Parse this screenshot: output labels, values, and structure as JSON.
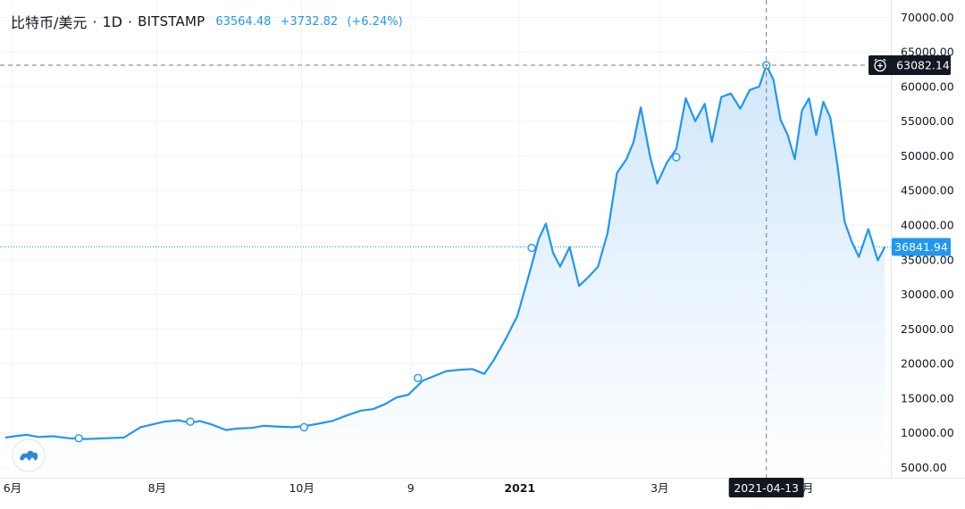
{
  "header": {
    "symbol": "比特币/美元",
    "interval": "1D",
    "exchange": "BITSTAMP",
    "last_price": "63564.48",
    "change": "+3732.82",
    "change_pct": "(+6.24%)"
  },
  "crosshair": {
    "date_label": "2021-04-13",
    "price_label": "63082.14",
    "alarm_icon": "alarm-clock-icon"
  },
  "last_price_label": "36841.94",
  "colors": {
    "line": "#2196f3",
    "area_top": "#cfe6fb",
    "area_bottom": "#ffffff",
    "axis_text": "#131722",
    "grid": "#f0f3fa",
    "crosshair": "#787b86",
    "last_price_bg": "#2196f3",
    "crosshair_label_bg": "#131722"
  },
  "chart_data": {
    "type": "area",
    "title": "",
    "xlabel": "",
    "ylabel": "",
    "ylim": [
      3500,
      72500
    ],
    "grid": true,
    "y_ticks": [
      "5000.00",
      "10000.00",
      "15000.00",
      "20000.00",
      "25000.00",
      "30000.00",
      "35000.00",
      "40000.00",
      "45000.00",
      "50000.00",
      "55000.00",
      "60000.00",
      "65000.00",
      "70000.00"
    ],
    "x_ticks": [
      {
        "label": "6月",
        "day": 3,
        "bold": false
      },
      {
        "label": "8月",
        "day": 64,
        "bold": false
      },
      {
        "label": "10月",
        "day": 125,
        "bold": false
      },
      {
        "label": "9",
        "day": 171,
        "bold": false
      },
      {
        "label": "2021",
        "day": 217,
        "bold": true
      },
      {
        "label": "3月",
        "day": 276,
        "bold": false
      },
      {
        "label": "5月",
        "day": 337,
        "bold": false
      }
    ],
    "series": [
      {
        "values": [
          [
            0,
            9300
          ],
          [
            4,
            9500
          ],
          [
            9,
            9700
          ],
          [
            14,
            9400
          ],
          [
            20,
            9500
          ],
          [
            27,
            9200
          ],
          [
            34,
            9100
          ],
          [
            42,
            9200
          ],
          [
            50,
            9300
          ],
          [
            57,
            10800
          ],
          [
            62,
            11200
          ],
          [
            67,
            11600
          ],
          [
            73,
            11800
          ],
          [
            78,
            11400
          ],
          [
            82,
            11700
          ],
          [
            87,
            11200
          ],
          [
            93,
            10400
          ],
          [
            98,
            10600
          ],
          [
            104,
            10700
          ],
          [
            109,
            11000
          ],
          [
            114,
            10900
          ],
          [
            121,
            10800
          ],
          [
            127,
            11000
          ],
          [
            132,
            11300
          ],
          [
            138,
            11700
          ],
          [
            144,
            12500
          ],
          [
            150,
            13200
          ],
          [
            155,
            13400
          ],
          [
            160,
            14100
          ],
          [
            165,
            15100
          ],
          [
            170,
            15500
          ],
          [
            176,
            17500
          ],
          [
            181,
            18200
          ],
          [
            186,
            18900
          ],
          [
            192,
            19100
          ],
          [
            197,
            19200
          ],
          [
            202,
            18500
          ],
          [
            206,
            20500
          ],
          [
            211,
            23500
          ],
          [
            216,
            26900
          ],
          [
            221,
            33000
          ],
          [
            225,
            38000
          ],
          [
            228,
            40200
          ],
          [
            231,
            36000
          ],
          [
            234,
            34000
          ],
          [
            238,
            36800
          ],
          [
            242,
            31200
          ],
          [
            246,
            32500
          ],
          [
            250,
            34000
          ],
          [
            254,
            38800
          ],
          [
            258,
            47500
          ],
          [
            262,
            49500
          ],
          [
            265,
            52000
          ],
          [
            268,
            57000
          ],
          [
            272,
            49800
          ],
          [
            275,
            46000
          ],
          [
            279,
            49000
          ],
          [
            283,
            51000
          ],
          [
            287,
            58300
          ],
          [
            291,
            55000
          ],
          [
            295,
            57500
          ],
          [
            298,
            52000
          ],
          [
            302,
            58500
          ],
          [
            306,
            59000
          ],
          [
            310,
            56800
          ],
          [
            314,
            59500
          ],
          [
            318,
            60000
          ],
          [
            321,
            63082
          ],
          [
            324,
            61000
          ],
          [
            327,
            55200
          ],
          [
            330,
            53000
          ],
          [
            333,
            49500
          ],
          [
            336,
            56500
          ],
          [
            339,
            58300
          ],
          [
            342,
            53000
          ],
          [
            345,
            57800
          ],
          [
            348,
            55500
          ],
          [
            351,
            48600
          ],
          [
            354,
            40500
          ],
          [
            357,
            37600
          ],
          [
            360,
            35400
          ],
          [
            364,
            39400
          ],
          [
            368,
            34900
          ],
          [
            371,
            36841
          ]
        ]
      }
    ],
    "markers": [
      [
        31,
        9200
      ],
      [
        78,
        11600
      ],
      [
        126,
        10800
      ],
      [
        174,
        17900
      ],
      [
        222,
        36700
      ],
      [
        283,
        49800
      ],
      [
        321,
        63082
      ]
    ],
    "crosshair": {
      "day": 321,
      "price": 63082.14
    },
    "last_value": 36841.94
  }
}
